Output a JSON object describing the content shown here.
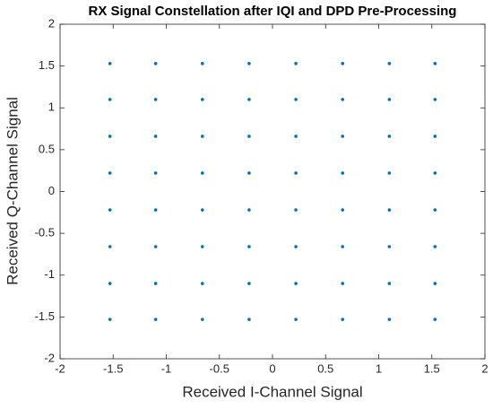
{
  "chart_data": {
    "type": "scatter",
    "title": "RX Signal Constellation after IQI and DPD Pre-Processing",
    "xlabel": "Received I-Channel Signal",
    "ylabel": "Received Q-Channel Signal",
    "xlim": [
      -2,
      2
    ],
    "ylim": [
      -2,
      2
    ],
    "xticks": [
      -2,
      -1.5,
      -1,
      -0.5,
      0,
      0.5,
      1,
      1.5,
      2
    ],
    "yticks": [
      -2,
      -1.5,
      -1,
      -0.5,
      0,
      0.5,
      1,
      1.5,
      2
    ],
    "grid": false,
    "series": [
      {
        "color": "#0072bd",
        "x": [
          -1.53,
          -1.53,
          -1.53,
          -1.53,
          -1.53,
          -1.53,
          -1.53,
          -1.53,
          -1.1,
          -1.1,
          -1.1,
          -1.1,
          -1.1,
          -1.1,
          -1.1,
          -1.1,
          -0.66,
          -0.66,
          -0.66,
          -0.66,
          -0.66,
          -0.66,
          -0.66,
          -0.66,
          -0.22,
          -0.22,
          -0.22,
          -0.22,
          -0.22,
          -0.22,
          -0.22,
          -0.22,
          0.22,
          0.22,
          0.22,
          0.22,
          0.22,
          0.22,
          0.22,
          0.22,
          0.66,
          0.66,
          0.66,
          0.66,
          0.66,
          0.66,
          0.66,
          0.66,
          1.1,
          1.1,
          1.1,
          1.1,
          1.1,
          1.1,
          1.1,
          1.1,
          1.53,
          1.53,
          1.53,
          1.53,
          1.53,
          1.53,
          1.53,
          1.53
        ],
        "y": [
          1.53,
          1.1,
          0.66,
          0.22,
          -0.22,
          -0.66,
          -1.1,
          -1.53,
          1.53,
          1.1,
          0.66,
          0.22,
          -0.22,
          -0.66,
          -1.1,
          -1.53,
          1.53,
          1.1,
          0.66,
          0.22,
          -0.22,
          -0.66,
          -1.1,
          -1.53,
          1.53,
          1.1,
          0.66,
          0.22,
          -0.22,
          -0.66,
          -1.1,
          -1.53,
          1.53,
          1.1,
          0.66,
          0.22,
          -0.22,
          -0.66,
          -1.1,
          -1.53,
          1.53,
          1.1,
          0.66,
          0.22,
          -0.22,
          -0.66,
          -1.1,
          -1.53,
          1.53,
          1.1,
          0.66,
          0.22,
          -0.22,
          -0.66,
          -1.1,
          -1.53,
          1.53,
          1.1,
          0.66,
          0.22,
          -0.22,
          -0.66,
          -1.1,
          -1.53
        ]
      }
    ]
  }
}
